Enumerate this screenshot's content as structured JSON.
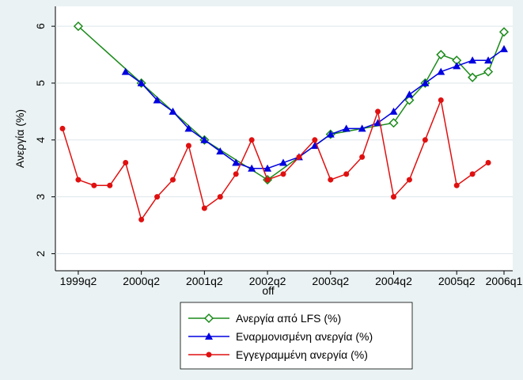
{
  "chart_data": {
    "type": "line",
    "xlabel": "off",
    "ylabel": "Ανεργία (%)",
    "xlim": [
      "1999q1",
      "2006q1"
    ],
    "xticks": [
      "1999q2",
      "2000q2",
      "2001q2",
      "2002q2",
      "2003q2",
      "2004q2",
      "2005q2",
      "2006q1"
    ],
    "ylim": [
      1.7,
      6.35
    ],
    "yticks": [
      2,
      3,
      4,
      5,
      6
    ],
    "grid": true,
    "series": [
      {
        "name": "Ανεργία από LFS (%)",
        "color": "#1a8a1a",
        "marker": "diamond",
        "x": [
          "1999q2",
          "2000q2",
          "2001q2",
          "2002q2",
          "2003q2",
          "2004q2",
          "2004q3",
          "2004q4",
          "2005q1",
          "2005q2",
          "2005q3",
          "2005q4",
          "2006q1"
        ],
        "values": [
          6.0,
          5.0,
          4.0,
          3.3,
          4.1,
          4.3,
          4.7,
          5.0,
          5.5,
          5.4,
          5.1,
          5.2,
          5.9
        ]
      },
      {
        "name": "Εναρμονισμένη ανεργία (%)",
        "color": "#0000e0",
        "marker": "triangle",
        "x": [
          "2000q1",
          "2000q2",
          "2000q3",
          "2000q4",
          "2001q1",
          "2001q2",
          "2001q3",
          "2001q4",
          "2002q1",
          "2002q2",
          "2002q3",
          "2002q4",
          "2003q1",
          "2003q2",
          "2003q3",
          "2003q4",
          "2004q1",
          "2004q2",
          "2004q3",
          "2004q4",
          "2005q1",
          "2005q2",
          "2005q3",
          "2005q4",
          "2006q1"
        ],
        "values": [
          5.2,
          5.0,
          4.7,
          4.5,
          4.2,
          4.0,
          3.8,
          3.6,
          3.5,
          3.5,
          3.6,
          3.7,
          3.9,
          4.1,
          4.2,
          4.2,
          4.3,
          4.5,
          4.8,
          5.0,
          5.2,
          5.3,
          5.4,
          5.4,
          5.6
        ]
      },
      {
        "name": "Εγγεγραμμένη ανεργία (%)",
        "color": "#e01010",
        "marker": "circle",
        "x": [
          "1999q1",
          "1999q2",
          "1999q3",
          "1999q4",
          "2000q1",
          "2000q2",
          "2000q3",
          "2000q4",
          "2001q1",
          "2001q2",
          "2001q3",
          "2001q4",
          "2002q1",
          "2002q2",
          "2002q3",
          "2002q4",
          "2003q1",
          "2003q2",
          "2003q3",
          "2003q4",
          "2004q1",
          "2004q2",
          "2004q3",
          "2004q4",
          "2005q1",
          "2005q2",
          "2005q3",
          "2005q4"
        ],
        "values": [
          4.2,
          3.3,
          3.2,
          3.2,
          3.6,
          2.6,
          3.0,
          3.3,
          3.9,
          2.8,
          3.0,
          3.4,
          4.0,
          3.3,
          3.4,
          3.7,
          4.0,
          3.3,
          3.4,
          3.7,
          4.5,
          3.0,
          3.3,
          4.0,
          4.7,
          3.2,
          3.4,
          3.6
        ]
      }
    ]
  }
}
